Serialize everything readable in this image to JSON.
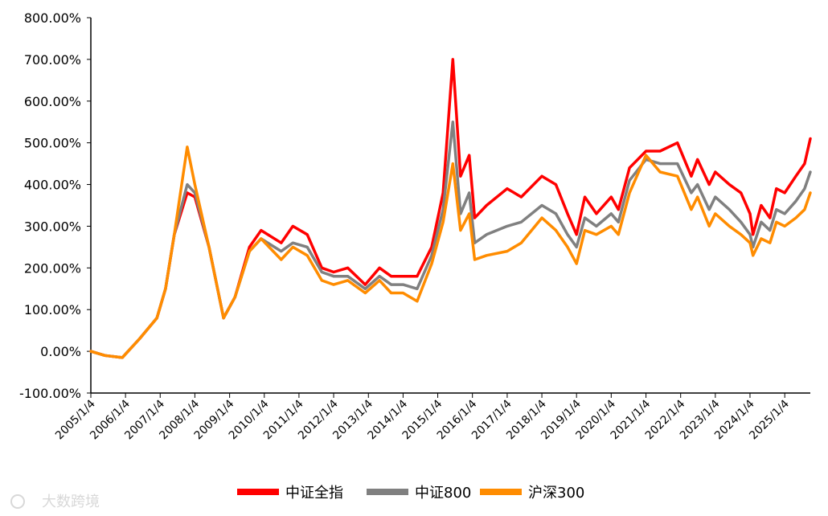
{
  "watermark": "大数跨境",
  "chart_data": {
    "type": "line",
    "title": "",
    "xlabel": "",
    "ylabel": "",
    "ylim": [
      -100,
      800
    ],
    "y_ticks": [
      800,
      700,
      600,
      500,
      400,
      300,
      200,
      100,
      0,
      -100
    ],
    "y_tick_labels": [
      "800.00%",
      "700.00%",
      "600.00%",
      "500.00%",
      "400.00%",
      "300.00%",
      "200.00%",
      "100.00%",
      "0.00%",
      "-100.00%"
    ],
    "x_tick_labels": [
      "2005/1/4",
      "2006/1/4",
      "2007/1/4",
      "2008/1/4",
      "2009/1/4",
      "2010/1/4",
      "2011/1/4",
      "2012/1/4",
      "2013/1/4",
      "2014/1/4",
      "2015/1/4",
      "2016/1/4",
      "2017/1/4",
      "2018/1/4",
      "2019/1/4",
      "2020/1/4",
      "2021/1/4",
      "2022/1/4",
      "2023/1/4",
      "2024/1/4",
      "2025/1/4"
    ],
    "legend_position": "bottom",
    "grid": false,
    "series": [
      {
        "name": "中证全指",
        "color": "#ff0000",
        "x": [
          "2005-01-04",
          "2005-06-01",
          "2005-12-01",
          "2006-06-01",
          "2006-12-01",
          "2007-03-01",
          "2007-06-01",
          "2007-10-16",
          "2008-01-04",
          "2008-06-01",
          "2008-11-01",
          "2009-03-01",
          "2009-08-01",
          "2009-12-01",
          "2010-07-01",
          "2010-11-01",
          "2011-04-01",
          "2011-09-01",
          "2012-01-04",
          "2012-06-01",
          "2012-12-01",
          "2013-05-01",
          "2013-09-01",
          "2014-01-04",
          "2014-06-01",
          "2014-11-01",
          "2015-03-01",
          "2015-06-12",
          "2015-09-01",
          "2015-12-01",
          "2016-01-28",
          "2016-06-01",
          "2017-01-04",
          "2017-06-01",
          "2018-01-04",
          "2018-06-01",
          "2018-10-01",
          "2019-01-04",
          "2019-04-01",
          "2019-08-01",
          "2020-01-04",
          "2020-03-20",
          "2020-07-15",
          "2021-01-04",
          "2021-06-01",
          "2021-12-01",
          "2022-04-26",
          "2022-07-01",
          "2022-10-31",
          "2023-01-04",
          "2023-06-01",
          "2023-10-01",
          "2024-01-04",
          "2024-02-05",
          "2024-05-01",
          "2024-08-01",
          "2024-10-08",
          "2025-01-04",
          "2025-05-01",
          "2025-08-01",
          "2025-09-30"
        ],
        "y": [
          0,
          -10,
          -15,
          30,
          80,
          150,
          280,
          380,
          370,
          250,
          80,
          130,
          250,
          290,
          260,
          300,
          280,
          200,
          190,
          200,
          160,
          200,
          180,
          180,
          180,
          250,
          380,
          700,
          420,
          470,
          320,
          350,
          390,
          370,
          420,
          400,
          330,
          280,
          370,
          330,
          370,
          340,
          440,
          480,
          480,
          500,
          420,
          460,
          400,
          430,
          400,
          380,
          330,
          280,
          350,
          320,
          390,
          380,
          420,
          450,
          510
        ]
      },
      {
        "name": "中证800",
        "color": "#808080",
        "x": [
          "2005-01-04",
          "2005-06-01",
          "2005-12-01",
          "2006-06-01",
          "2006-12-01",
          "2007-03-01",
          "2007-06-01",
          "2007-10-16",
          "2008-01-04",
          "2008-06-01",
          "2008-11-01",
          "2009-03-01",
          "2009-08-01",
          "2009-12-01",
          "2010-07-01",
          "2010-11-01",
          "2011-04-01",
          "2011-09-01",
          "2012-01-04",
          "2012-06-01",
          "2012-12-01",
          "2013-05-01",
          "2013-09-01",
          "2014-01-04",
          "2014-06-01",
          "2014-11-01",
          "2015-03-01",
          "2015-06-12",
          "2015-09-01",
          "2015-12-01",
          "2016-01-28",
          "2016-06-01",
          "2017-01-04",
          "2017-06-01",
          "2018-01-04",
          "2018-06-01",
          "2018-10-01",
          "2019-01-04",
          "2019-04-01",
          "2019-08-01",
          "2020-01-04",
          "2020-03-20",
          "2020-07-15",
          "2021-01-04",
          "2021-06-01",
          "2021-12-01",
          "2022-04-26",
          "2022-07-01",
          "2022-10-31",
          "2023-01-04",
          "2023-06-01",
          "2023-10-01",
          "2024-01-04",
          "2024-02-05",
          "2024-05-01",
          "2024-08-01",
          "2024-10-08",
          "2025-01-04",
          "2025-05-01",
          "2025-08-01",
          "2025-09-30"
        ],
        "y": [
          0,
          -10,
          -15,
          30,
          80,
          150,
          280,
          400,
          380,
          250,
          80,
          130,
          240,
          270,
          240,
          260,
          250,
          190,
          180,
          180,
          150,
          180,
          160,
          160,
          150,
          230,
          340,
          550,
          330,
          380,
          260,
          280,
          300,
          310,
          350,
          330,
          280,
          250,
          320,
          300,
          330,
          310,
          410,
          460,
          450,
          450,
          380,
          400,
          340,
          370,
          340,
          310,
          280,
          250,
          310,
          290,
          340,
          330,
          360,
          390,
          430
        ]
      },
      {
        "name": "沪深300",
        "color": "#ff8c00",
        "x": [
          "2005-01-04",
          "2005-06-01",
          "2005-12-01",
          "2006-06-01",
          "2006-12-01",
          "2007-03-01",
          "2007-06-01",
          "2007-10-16",
          "2008-01-04",
          "2008-06-01",
          "2008-11-01",
          "2009-03-01",
          "2009-08-01",
          "2009-12-01",
          "2010-07-01",
          "2010-11-01",
          "2011-04-01",
          "2011-09-01",
          "2012-01-04",
          "2012-06-01",
          "2012-12-01",
          "2013-05-01",
          "2013-09-01",
          "2014-01-04",
          "2014-06-01",
          "2014-11-01",
          "2015-03-01",
          "2015-06-12",
          "2015-09-01",
          "2015-12-01",
          "2016-01-28",
          "2016-06-01",
          "2017-01-04",
          "2017-06-01",
          "2018-01-04",
          "2018-06-01",
          "2018-10-01",
          "2019-01-04",
          "2019-04-01",
          "2019-08-01",
          "2020-01-04",
          "2020-03-20",
          "2020-07-15",
          "2021-01-04",
          "2021-06-01",
          "2021-12-01",
          "2022-04-26",
          "2022-07-01",
          "2022-10-31",
          "2023-01-04",
          "2023-06-01",
          "2023-10-01",
          "2024-01-04",
          "2024-02-05",
          "2024-05-01",
          "2024-08-01",
          "2024-10-08",
          "2025-01-04",
          "2025-05-01",
          "2025-08-01",
          "2025-09-30"
        ],
        "y": [
          0,
          -10,
          -15,
          30,
          80,
          150,
          280,
          490,
          400,
          250,
          80,
          130,
          240,
          270,
          220,
          250,
          230,
          170,
          160,
          170,
          140,
          170,
          140,
          140,
          120,
          210,
          310,
          450,
          290,
          330,
          220,
          230,
          240,
          260,
          320,
          290,
          250,
          210,
          290,
          280,
          300,
          280,
          380,
          470,
          430,
          420,
          340,
          370,
          300,
          330,
          300,
          280,
          260,
          230,
          270,
          260,
          310,
          300,
          320,
          340,
          380
        ]
      }
    ]
  }
}
